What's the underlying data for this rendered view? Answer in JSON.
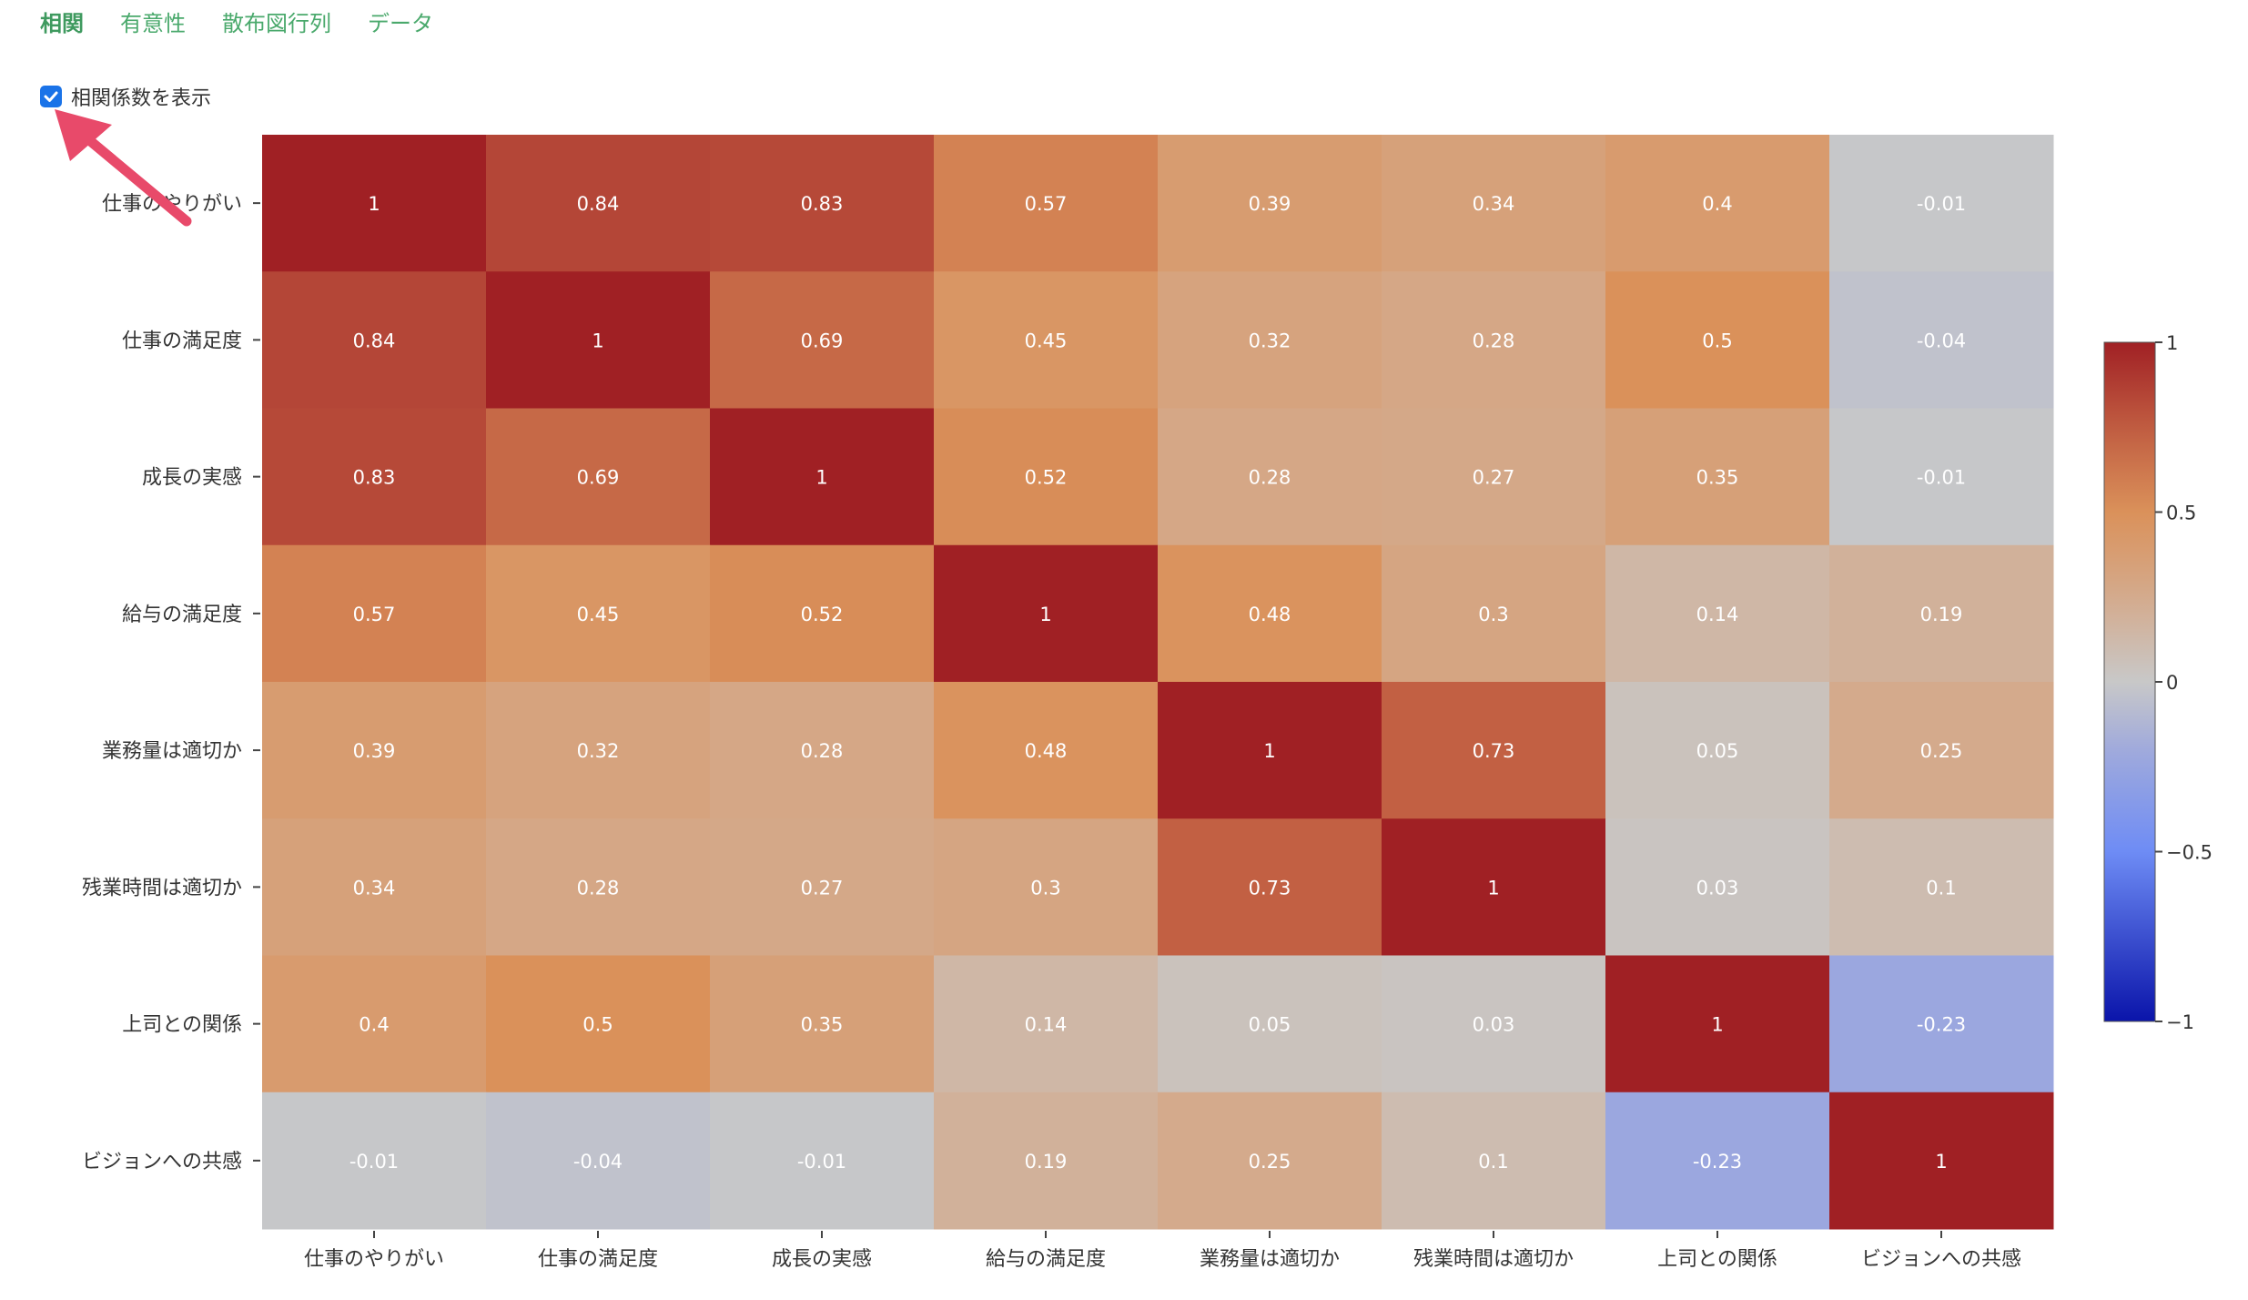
{
  "tabs": [
    {
      "label": "相関",
      "active": true
    },
    {
      "label": "有意性",
      "active": false
    },
    {
      "label": "散布図行列",
      "active": false
    },
    {
      "label": "データ",
      "active": false
    }
  ],
  "options": {
    "show_coefficients_label": "相関係数を表示",
    "show_coefficients_checked": true
  },
  "colors": {
    "tab_accent": "#4aa96c",
    "checkbox": "#1a73e8",
    "annotation_arrow": "#e84a6a"
  },
  "chart_data": {
    "type": "heatmap",
    "labels": [
      "仕事のやりがい",
      "仕事の満足度",
      "成長の実感",
      "給与の満足度",
      "業務量は適切か",
      "残業時間は適切か",
      "上司との関係",
      "ビジョンへの共感"
    ],
    "matrix": [
      [
        1,
        0.84,
        0.83,
        0.57,
        0.39,
        0.34,
        0.4,
        -0.01
      ],
      [
        0.84,
        1,
        0.69,
        0.45,
        0.32,
        0.28,
        0.5,
        -0.04
      ],
      [
        0.83,
        0.69,
        1,
        0.52,
        0.28,
        0.27,
        0.35,
        -0.01
      ],
      [
        0.57,
        0.45,
        0.52,
        1,
        0.48,
        0.3,
        0.14,
        0.19
      ],
      [
        0.39,
        0.32,
        0.28,
        0.48,
        1,
        0.73,
        0.05,
        0.25
      ],
      [
        0.34,
        0.28,
        0.27,
        0.3,
        0.73,
        1,
        0.03,
        0.1
      ],
      [
        0.4,
        0.5,
        0.35,
        0.14,
        0.05,
        0.03,
        1,
        -0.23
      ],
      [
        -0.01,
        -0.04,
        -0.01,
        0.19,
        0.25,
        0.1,
        -0.23,
        1
      ]
    ],
    "colorscale": "coolwarm",
    "zmin": -1,
    "zmax": 1,
    "colorbar_ticks": [
      "1",
      "0.5",
      "0",
      "−0.5",
      "−1"
    ],
    "colorbar_tick_values": [
      1,
      0.5,
      0,
      -0.5,
      -1
    ]
  }
}
